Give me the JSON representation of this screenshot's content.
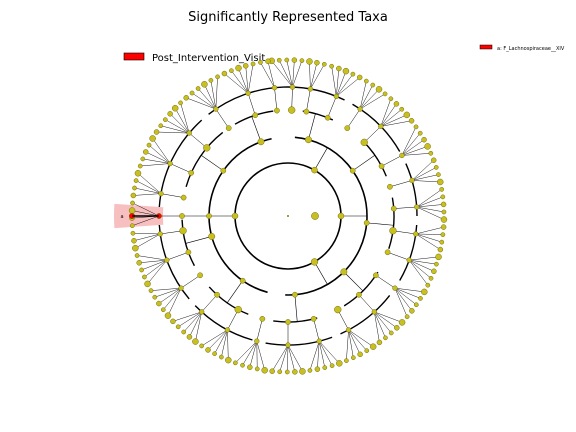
{
  "title": "Significantly Represented Taxa",
  "legend": {
    "label": "Post_Intervention_Visit",
    "color": "#ff0000"
  },
  "right_legend": {
    "label": "a: F_Lachnospiraceae__XIV",
    "color": "#ff0000"
  },
  "highlight": {
    "marker": "a",
    "color": "#ff0000"
  },
  "colors": {
    "node_fill": "#c8c020",
    "node_edge": "#6f6a08",
    "line": "#000000",
    "clade_shade": "#f6b4b4"
  },
  "chart_data": {
    "type": "cladogram",
    "layout": "circular",
    "ring_angles_deg": {
      "class": [
        -60,
        0,
        60,
        180
      ],
      "order": [
        -75,
        -35,
        5,
        45,
        85,
        125,
        165,
        180,
        215,
        250
      ],
      "family": [
        -88,
        -80,
        -68,
        -56,
        -44,
        -28,
        -16,
        -4,
        8,
        20,
        34,
        48,
        62,
        76,
        90,
        104,
        118,
        132,
        146,
        160,
        172,
        180,
        190,
        204,
        220,
        236,
        252,
        264
      ]
    },
    "leaf_count": 130,
    "highlighted_taxon": "F_Lachnospiraceae__XIV"
  }
}
